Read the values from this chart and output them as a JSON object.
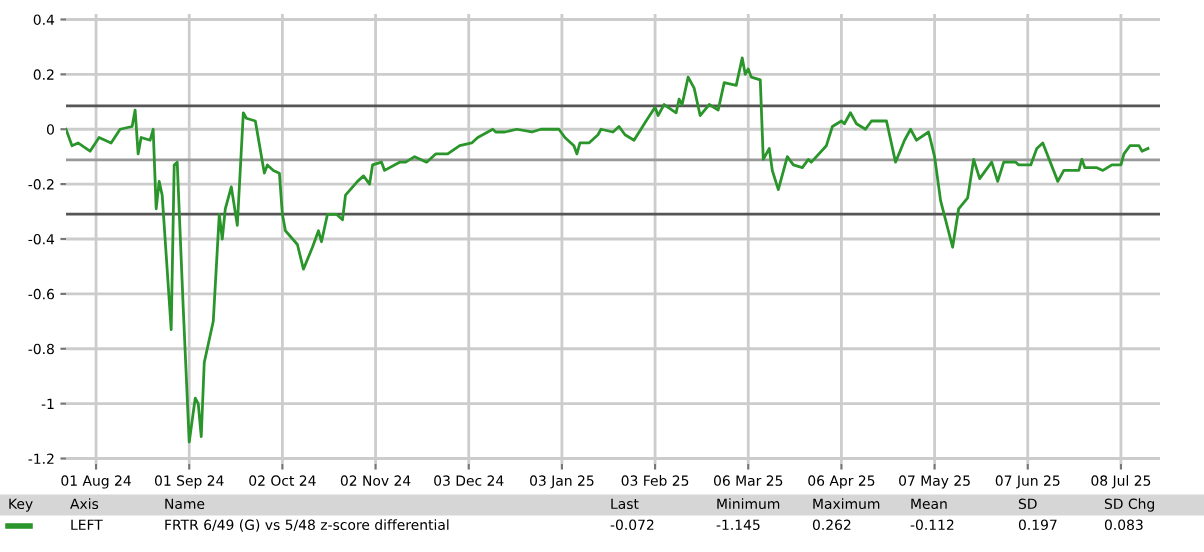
{
  "chart_data": {
    "type": "line",
    "x": [
      "2024-07-22",
      "2024-07-24",
      "2024-07-26",
      "2024-07-30",
      "2024-08-02",
      "2024-08-06",
      "2024-08-09",
      "2024-08-13",
      "2024-08-14",
      "2024-08-15",
      "2024-08-16",
      "2024-08-19",
      "2024-08-20",
      "2024-08-21",
      "2024-08-22",
      "2024-08-23",
      "2024-08-26",
      "2024-08-27",
      "2024-08-28",
      "2024-08-30",
      "2024-09-01",
      "2024-09-03",
      "2024-09-04",
      "2024-09-05",
      "2024-09-06",
      "2024-09-09",
      "2024-09-11",
      "2024-09-12",
      "2024-09-13",
      "2024-09-15",
      "2024-09-17",
      "2024-09-19",
      "2024-09-20",
      "2024-09-23",
      "2024-09-26",
      "2024-09-27",
      "2024-09-29",
      "2024-10-01",
      "2024-10-02",
      "2024-10-03",
      "2024-10-07",
      "2024-10-09",
      "2024-10-12",
      "2024-10-14",
      "2024-10-15",
      "2024-10-17",
      "2024-10-20",
      "2024-10-22",
      "2024-10-23",
      "2024-10-27",
      "2024-10-29",
      "2024-10-31",
      "2024-11-01",
      "2024-11-04",
      "2024-11-05",
      "2024-11-10",
      "2024-11-12",
      "2024-11-15",
      "2024-11-19",
      "2024-11-22",
      "2024-11-26",
      "2024-11-30",
      "2024-12-04",
      "2024-12-06",
      "2024-12-11",
      "2024-12-12",
      "2024-12-15",
      "2024-12-19",
      "2024-12-24",
      "2024-12-27",
      "2025-01-02",
      "2025-01-04",
      "2025-01-07",
      "2025-01-08",
      "2025-01-09",
      "2025-01-12",
      "2025-01-15",
      "2025-01-16",
      "2025-01-20",
      "2025-01-22",
      "2025-01-24",
      "2025-01-27",
      "2025-01-31",
      "2025-02-03",
      "2025-02-04",
      "2025-02-06",
      "2025-02-10",
      "2025-02-11",
      "2025-02-12",
      "2025-02-14",
      "2025-02-16",
      "2025-02-18",
      "2025-02-21",
      "2025-02-24",
      "2025-02-26",
      "2025-03-02",
      "2025-03-04",
      "2025-03-05",
      "2025-03-06",
      "2025-03-07",
      "2025-03-10",
      "2025-03-11",
      "2025-03-13",
      "2025-03-14",
      "2025-03-16",
      "2025-03-19",
      "2025-03-21",
      "2025-03-24",
      "2025-03-26",
      "2025-03-27",
      "2025-04-01",
      "2025-04-03",
      "2025-04-06",
      "2025-04-07",
      "2025-04-09",
      "2025-04-11",
      "2025-04-14",
      "2025-04-16",
      "2025-04-21",
      "2025-04-24",
      "2025-04-27",
      "2025-04-29",
      "2025-05-01",
      "2025-05-05",
      "2025-05-07",
      "2025-05-09",
      "2025-05-13",
      "2025-05-15",
      "2025-05-18",
      "2025-05-20",
      "2025-05-22",
      "2025-05-26",
      "2025-05-28",
      "2025-05-30",
      "2025-06-03",
      "2025-06-04",
      "2025-06-08",
      "2025-06-10",
      "2025-06-12",
      "2025-06-17",
      "2025-06-19",
      "2025-06-24",
      "2025-06-25",
      "2025-06-26",
      "2025-06-30",
      "2025-07-02",
      "2025-07-05",
      "2025-07-08",
      "2025-07-09",
      "2025-07-11",
      "2025-07-14",
      "2025-07-15",
      "2025-07-17"
    ],
    "series": [
      {
        "name": "FRTR 6/49 (G) vs 5/48 z-score differential",
        "color": "#2a952a",
        "values": [
          0.0,
          -0.06,
          -0.05,
          -0.08,
          -0.03,
          -0.05,
          0.0,
          0.01,
          0.07,
          -0.09,
          -0.03,
          -0.04,
          0.0,
          -0.29,
          -0.19,
          -0.24,
          -0.73,
          -0.13,
          -0.12,
          -0.65,
          -1.14,
          -0.98,
          -1.0,
          -1.12,
          -0.85,
          -0.7,
          -0.31,
          -0.4,
          -0.29,
          -0.21,
          -0.35,
          0.06,
          0.04,
          0.03,
          -0.16,
          -0.13,
          -0.15,
          -0.16,
          -0.31,
          -0.37,
          -0.42,
          -0.51,
          -0.43,
          -0.37,
          -0.41,
          -0.31,
          -0.31,
          -0.33,
          -0.24,
          -0.19,
          -0.17,
          -0.2,
          -0.13,
          -0.12,
          -0.15,
          -0.12,
          -0.12,
          -0.1,
          -0.12,
          -0.09,
          -0.09,
          -0.06,
          -0.05,
          -0.03,
          0.0,
          -0.01,
          -0.01,
          0.0,
          -0.01,
          0.0,
          0.0,
          -0.03,
          -0.06,
          -0.09,
          -0.05,
          -0.05,
          -0.02,
          0.0,
          -0.01,
          0.01,
          -0.02,
          -0.04,
          0.03,
          0.08,
          0.05,
          0.09,
          0.06,
          0.11,
          0.09,
          0.19,
          0.15,
          0.05,
          0.09,
          0.07,
          0.17,
          0.16,
          0.26,
          0.2,
          0.22,
          0.19,
          0.18,
          -0.11,
          -0.07,
          -0.15,
          -0.22,
          -0.1,
          -0.13,
          -0.14,
          -0.11,
          -0.12,
          -0.06,
          0.01,
          0.03,
          0.02,
          0.06,
          0.02,
          0.0,
          0.03,
          0.03,
          -0.12,
          -0.04,
          0.0,
          -0.04,
          -0.01,
          -0.1,
          -0.26,
          -0.43,
          -0.29,
          -0.25,
          -0.11,
          -0.18,
          -0.12,
          -0.19,
          -0.12,
          -0.12,
          -0.13,
          -0.13,
          -0.07,
          -0.05,
          -0.19,
          -0.15,
          -0.15,
          -0.11,
          -0.14,
          -0.14,
          -0.15,
          -0.13,
          -0.13,
          -0.09,
          -0.06,
          -0.06,
          -0.08,
          -0.07
        ]
      }
    ],
    "xlim": [
      "2024-07-22",
      "2025-07-21"
    ],
    "xticks": [
      {
        "value": "2024-08-01",
        "label": "01 Aug 24"
      },
      {
        "value": "2024-09-01",
        "label": "01 Sep 24"
      },
      {
        "value": "2024-10-02",
        "label": "02 Oct 24"
      },
      {
        "value": "2024-11-02",
        "label": "02 Nov 24"
      },
      {
        "value": "2024-12-03",
        "label": "03 Dec 24"
      },
      {
        "value": "2025-01-03",
        "label": "03 Jan 25"
      },
      {
        "value": "2025-02-03",
        "label": "03 Feb 25"
      },
      {
        "value": "2025-03-06",
        "label": "06 Mar 25"
      },
      {
        "value": "2025-04-06",
        "label": "06 Apr 25"
      },
      {
        "value": "2025-05-07",
        "label": "07 May 25"
      },
      {
        "value": "2025-06-07",
        "label": "07 Jun 25"
      },
      {
        "value": "2025-07-08",
        "label": "08 Jul 25"
      }
    ],
    "ylim": [
      -1.22,
      0.42
    ],
    "yticks": [
      0.4,
      0.2,
      0,
      -0.2,
      -0.4,
      -0.6,
      -0.8,
      -1,
      -1.2
    ],
    "grid": true,
    "ref_lines": [
      {
        "axis": "y",
        "value": 0.085,
        "color": "#555555"
      },
      {
        "axis": "y",
        "value": -0.112,
        "color": "#999999"
      },
      {
        "axis": "y",
        "value": -0.309,
        "color": "#555555"
      }
    ],
    "annotations": [
      "Key",
      "Axis",
      "Name",
      "Last",
      "Minimum",
      "Maximum",
      "Mean",
      "SD",
      "SD Chg",
      "LEFT",
      "-0.072",
      "-1.145",
      "0.262",
      "-0.112",
      "0.197",
      "0.083"
    ]
  }
}
